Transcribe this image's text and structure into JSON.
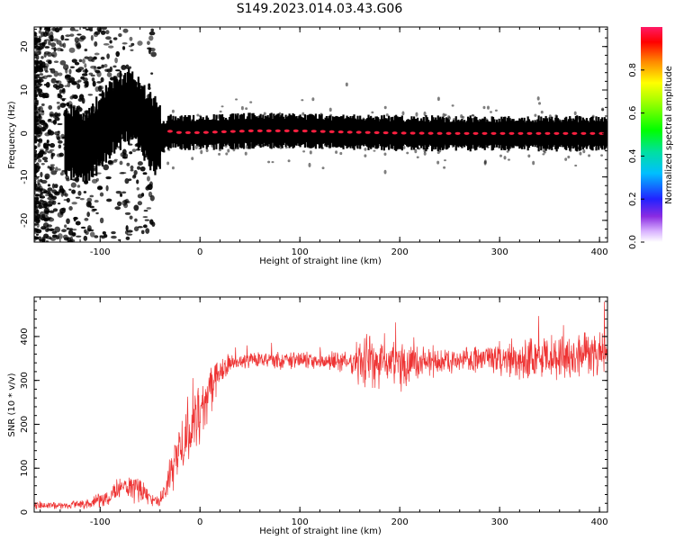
{
  "title": "S149.2023.014.03.43.G06",
  "chart_data": [
    {
      "type": "heatmap",
      "xlabel": "Height of straight line (km)",
      "ylabel": "Frequency (Hz)",
      "xlim": [
        -166,
        408
      ],
      "ylim": [
        -25,
        24.5
      ],
      "x_ticks": [
        -100,
        0,
        100,
        200,
        300,
        400
      ],
      "y_ticks": [
        -20,
        -10,
        0,
        10,
        20
      ],
      "colorbar": {
        "label": "Normalized spectral amplitude",
        "range": [
          0,
          1
        ],
        "ticks": [
          0.0,
          0.2,
          0.4,
          0.6,
          0.8
        ],
        "colormap": "rainbow"
      },
      "ridge": {
        "description_points_x": [
          -125,
          -115,
          -105,
          -95,
          -85,
          -75,
          -68,
          -60,
          -52,
          -45,
          -38,
          -30,
          -20,
          0,
          50,
          100,
          150,
          200,
          250,
          300,
          350,
          400
        ],
        "frequency": [
          -2,
          -3.5,
          -1,
          2,
          4.5,
          6,
          6.5,
          4,
          1,
          -0.5,
          -1,
          0.5,
          0.2,
          0.2,
          0.6,
          0.6,
          0.3,
          0.1,
          0.0,
          0.0,
          0.0,
          0.0
        ]
      },
      "grid": false
    },
    {
      "type": "line",
      "xlabel": "Height of straight line (km)",
      "ylabel": "SNR (10 * v/v)",
      "xlim": [
        -166,
        408
      ],
      "ylim": [
        0,
        490
      ],
      "x_ticks": [
        -100,
        0,
        100,
        200,
        300,
        400
      ],
      "y_ticks": [
        0,
        100,
        200,
        300,
        400
      ],
      "series_color": "#ee3333",
      "envelope": {
        "x": [
          -166,
          -130,
          -110,
          -90,
          -75,
          -60,
          -50,
          -40,
          -30,
          -20,
          -10,
          0,
          10,
          20,
          30,
          50,
          100,
          150,
          160,
          170,
          200,
          250,
          280,
          300,
          350,
          408
        ],
        "mean": [
          15,
          15,
          20,
          35,
          60,
          55,
          30,
          25,
          80,
          150,
          200,
          230,
          280,
          320,
          340,
          345,
          345,
          345,
          340,
          340,
          340,
          345,
          350,
          350,
          355,
          360
        ],
        "spread": [
          8,
          8,
          10,
          20,
          35,
          30,
          15,
          15,
          40,
          60,
          70,
          70,
          55,
          30,
          20,
          18,
          18,
          22,
          50,
          60,
          55,
          25,
          30,
          40,
          45,
          45
        ]
      },
      "grid": false
    }
  ]
}
